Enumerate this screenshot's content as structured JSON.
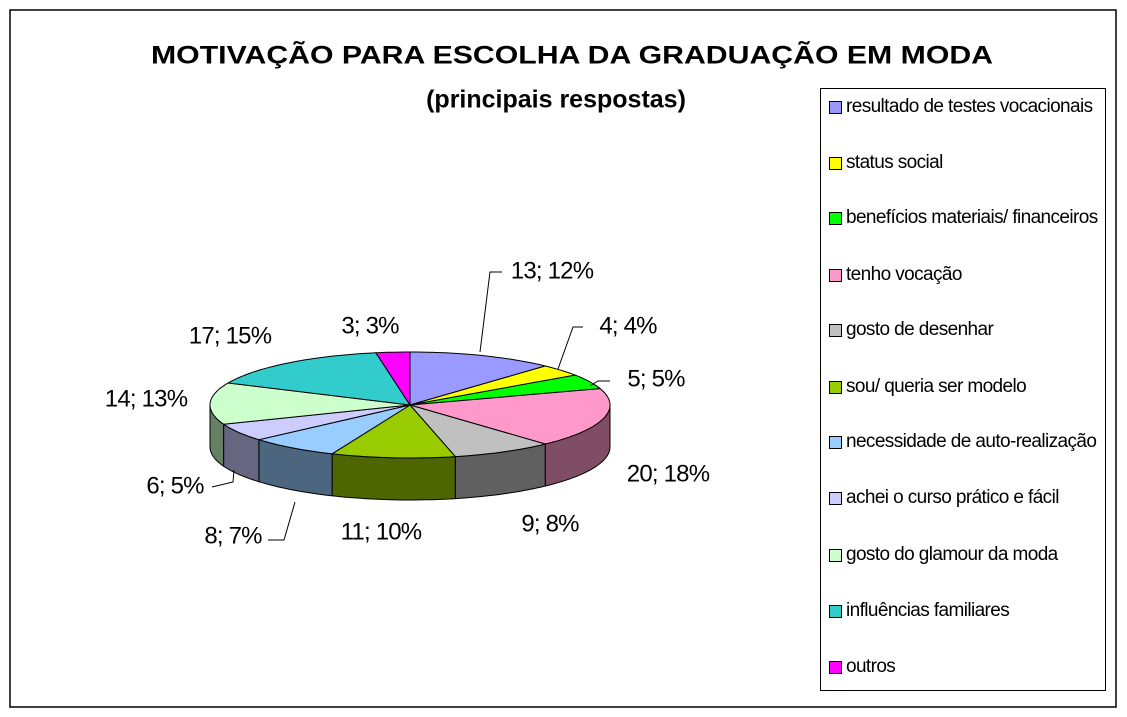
{
  "chart_data": {
    "type": "pie3d",
    "title": "MOTIVAÇÃO PARA ESCOLHA DA GRADUAÇÃO EM MODA",
    "subtitle": "(principais respostas)",
    "categories": [
      "resultado de testes vocacionais",
      "status social",
      "benefícios materiais/ financeiros",
      "tenho vocação",
      "gosto de desenhar",
      "sou/ queria ser modelo",
      "necessidade de auto-realização",
      "achei o curso prático e fácil",
      "gosto do glamour da moda",
      "influências familiares",
      "outros"
    ],
    "values": [
      13,
      4,
      5,
      20,
      9,
      11,
      8,
      6,
      14,
      17,
      3
    ],
    "value_labels": [
      "13; 12%",
      "4; 4%",
      "5; 5%",
      "20; 18%",
      "9; 8%",
      "11; 10%",
      "8; 7%",
      "6; 5%",
      "14; 13%",
      "17; 15%",
      "3; 3%"
    ],
    "colors": [
      "#9999ff",
      "#ffff00",
      "#00ff00",
      "#ff99cc",
      "#c0c0c0",
      "#99cc00",
      "#99ccff",
      "#ccccff",
      "#ccffcc",
      "#33cccc",
      "#ff00ff"
    ],
    "legend": "right"
  }
}
